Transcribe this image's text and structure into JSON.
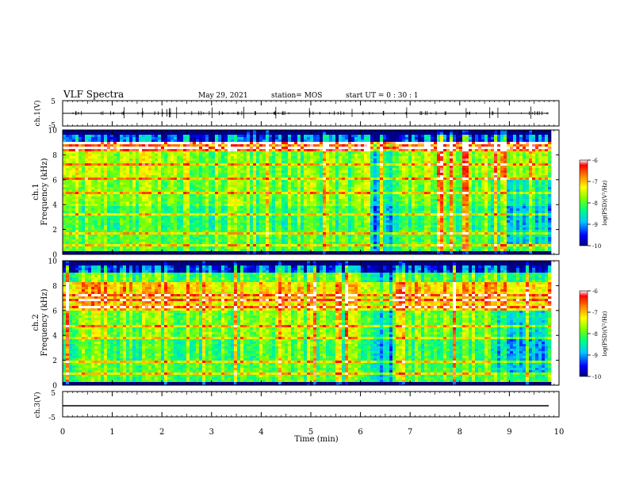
{
  "header": {
    "title": "VLF Spectra",
    "date": "May 29, 2021",
    "station": "station= MOS",
    "start": "start  UT =   0  : 30 : 1"
  },
  "chart_data": {
    "type": "heatmap",
    "xlabel": "Time  (min)",
    "xlim": [
      0,
      10
    ],
    "xticks": [
      "0",
      "1",
      "2",
      "3",
      "4",
      "5",
      "6",
      "7",
      "8",
      "9",
      "10"
    ],
    "panels": [
      {
        "id": "ch1-waveform",
        "type": "line",
        "ylabel": "ch.1(V)",
        "ylim": [
          -5,
          5
        ],
        "yticks": [
          "5",
          "-5"
        ],
        "baseline": 0
      },
      {
        "id": "ch1-spectrogram",
        "type": "heatmap",
        "ylabel_top": "ch.1",
        "ylabel": "Frequency  (kHz)",
        "ylim": [
          0,
          10
        ],
        "yticks": [
          "0",
          "2",
          "4",
          "6",
          "8",
          "10"
        ]
      },
      {
        "id": "ch2-spectrogram",
        "type": "heatmap",
        "ylabel_top": "ch.2",
        "ylabel": "Frequency  (kHz)",
        "ylim": [
          0,
          10
        ],
        "yticks": [
          "0",
          "2",
          "4",
          "6",
          "8",
          "10"
        ]
      },
      {
        "id": "ch3-waveform",
        "type": "line",
        "ylabel": "ch.3(V)",
        "ylim": [
          -5,
          5
        ],
        "yticks": [
          "5",
          "-5"
        ],
        "baseline": 0
      }
    ],
    "colorbar": {
      "label": "log(PSD)(V²/Hz)",
      "range": [
        -10,
        -6
      ],
      "ticks": [
        "-6",
        "-7",
        "-8",
        "-9",
        "-10"
      ],
      "colors": [
        "#000080",
        "#0000ff",
        "#00c8ff",
        "#00ff80",
        "#80ff00",
        "#ffff00",
        "#ff8000",
        "#ff0000",
        "#ffffff"
      ]
    }
  }
}
